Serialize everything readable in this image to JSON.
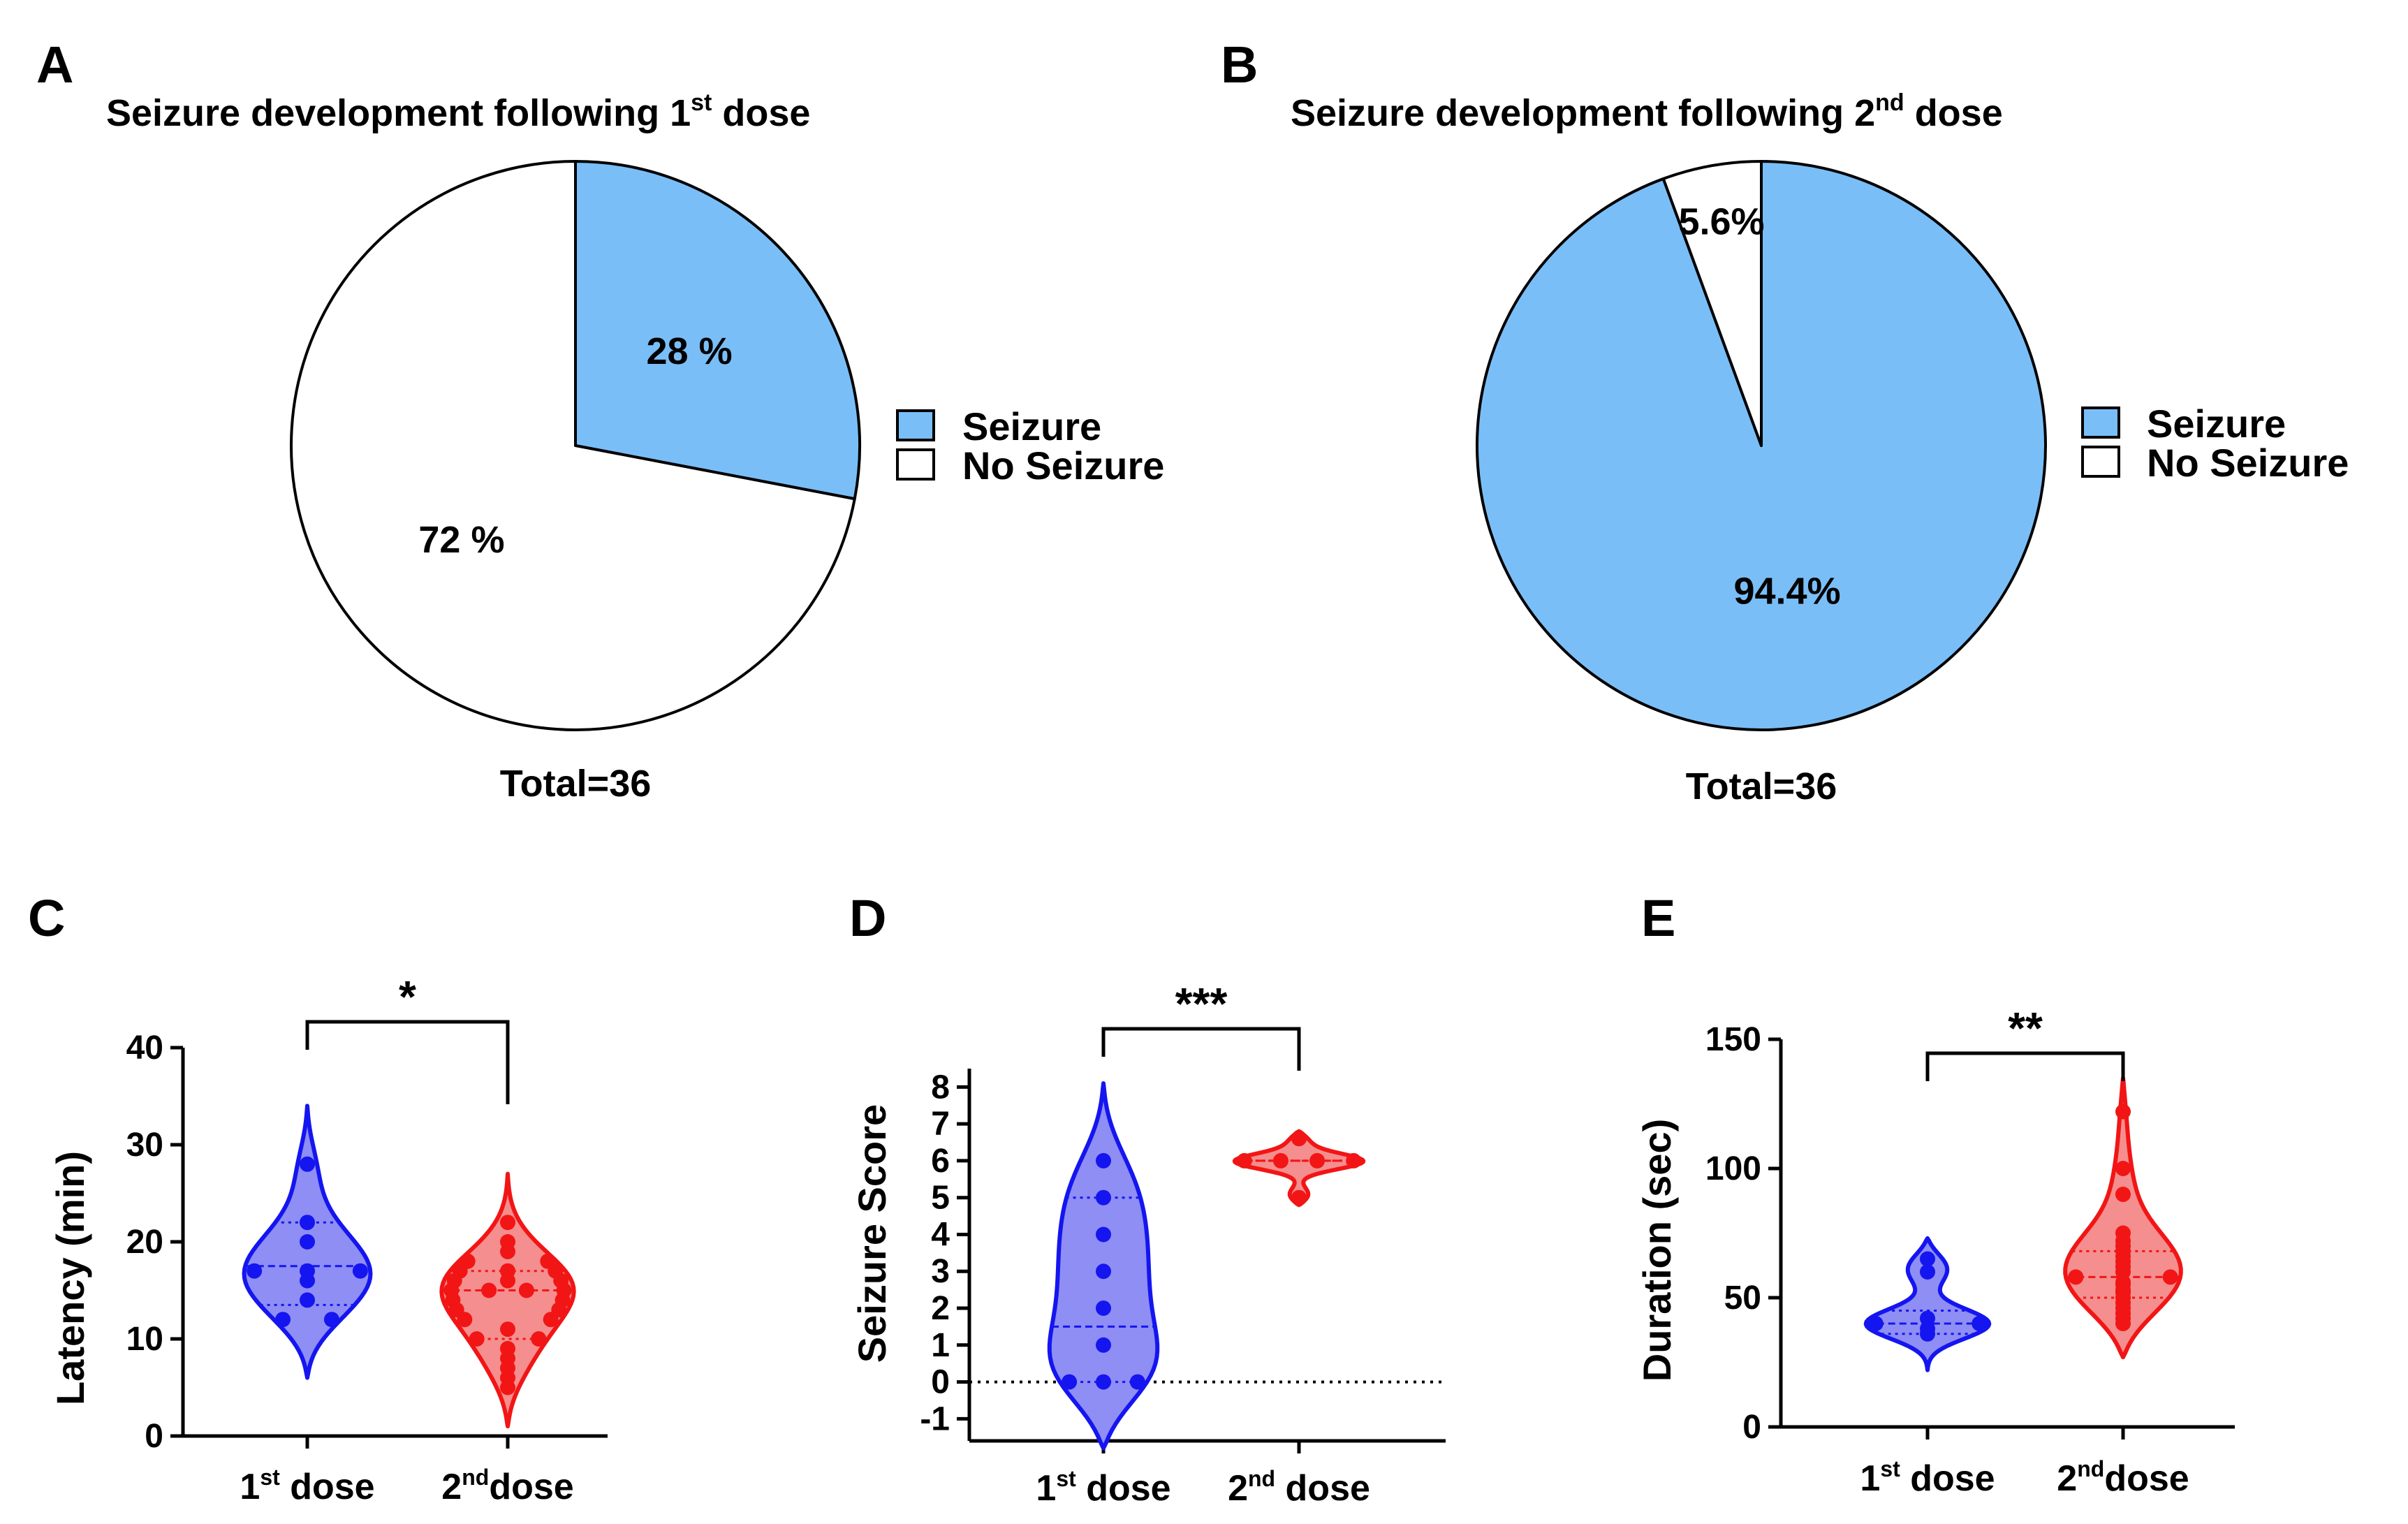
{
  "colors": {
    "seizure_fill": "#7ABEF7",
    "no_seizure_fill": "#FFFFFF",
    "dose1": "#1515F0",
    "dose1_fill": "#8E8EF4",
    "dose2": "#F21515",
    "dose2_fill": "#F58E8E"
  },
  "chart_data": [
    {
      "panel": "A",
      "type": "pie",
      "title": "Seizure development following 1",
      "title_sup": "st",
      "title_end": " dose",
      "slices": [
        {
          "label": "Seizure",
          "value": 28,
          "display": "28 %"
        },
        {
          "label": "No Seizure",
          "value": 72,
          "display": "72 %"
        }
      ],
      "legend": [
        "Seizure",
        "No Seizure"
      ],
      "footer": "Total=36"
    },
    {
      "panel": "B",
      "type": "pie",
      "title": "Seizure development following 2",
      "title_sup": "nd",
      "title_end": " dose",
      "slices": [
        {
          "label": "Seizure",
          "value": 94.4,
          "display": "94.4%"
        },
        {
          "label": "No Seizure",
          "value": 5.6,
          "display": "5.6%"
        }
      ],
      "legend": [
        "Seizure",
        "No Seizure"
      ],
      "footer": "Total=36"
    },
    {
      "panel": "C",
      "type": "violin",
      "ylabel": "Latency (min)",
      "ylim": [
        0,
        40
      ],
      "yticks": [
        "0",
        "10",
        "20",
        "30",
        "40"
      ],
      "categories": [
        {
          "base": "1",
          "sup": "st",
          "rest": " dose"
        },
        {
          "base": "2",
          "sup": "nd",
          "rest": "dose"
        }
      ],
      "significance": "*",
      "series": [
        {
          "name": "1st dose",
          "median": 17.5,
          "q1": 13.5,
          "q3": 22,
          "min_extent": 6,
          "max_extent": 34,
          "points": [
            28,
            22,
            20,
            17,
            17,
            17,
            16,
            14,
            12,
            12
          ]
        },
        {
          "name": "2nd dose",
          "median": 15,
          "q1": 10,
          "q3": 17,
          "min_extent": 1,
          "max_extent": 27,
          "points": [
            22,
            20,
            19,
            18,
            18,
            17,
            17,
            17,
            16,
            16,
            16,
            15,
            15,
            15,
            15,
            14,
            14,
            13,
            13,
            12,
            12,
            11,
            10,
            10,
            9,
            8,
            7,
            6,
            5
          ]
        }
      ]
    },
    {
      "panel": "D",
      "type": "violin",
      "ylabel": "Seizure Score",
      "ylim": [
        -1.6,
        8.5
      ],
      "yticks": [
        "-1",
        "0",
        "1",
        "2",
        "3",
        "4",
        "5",
        "6",
        "7",
        "8"
      ],
      "categories": [
        {
          "base": "1",
          "sup": "st",
          "rest": " dose"
        },
        {
          "base": "2",
          "sup": "nd",
          "rest": " dose"
        }
      ],
      "significance": "***",
      "reference_line": 0,
      "series": [
        {
          "name": "1st dose",
          "median": 1.5,
          "q1": 0,
          "q3": 5,
          "min_extent": -1.8,
          "max_extent": 8.1,
          "points": [
            6,
            5,
            4,
            3,
            2,
            1,
            0,
            0,
            0
          ]
        },
        {
          "name": "2nd dose",
          "median": 6,
          "q1": 6,
          "q3": 6,
          "min_extent": 4.8,
          "max_extent": 6.8,
          "points": [
            6.6,
            6,
            6,
            6,
            6,
            5
          ]
        }
      ]
    },
    {
      "panel": "E",
      "type": "violin",
      "ylabel": "Duration (sec)",
      "ylim": [
        0,
        150
      ],
      "yticks": [
        "0",
        "50",
        "100",
        "150"
      ],
      "categories": [
        {
          "base": "1",
          "sup": "st",
          "rest": " dose"
        },
        {
          "base": "2",
          "sup": "nd",
          "rest": "dose"
        }
      ],
      "significance": "**",
      "series": [
        {
          "name": "1st dose",
          "median": 40,
          "q1": 36,
          "q3": 45,
          "min_extent": 22,
          "max_extent": 73,
          "points": [
            65,
            60,
            42,
            40,
            40,
            38,
            36
          ]
        },
        {
          "name": "2nd dose",
          "median": 58,
          "q1": 50,
          "q3": 68,
          "min_extent": 27,
          "max_extent": 135,
          "points": [
            122,
            100,
            90,
            75,
            72,
            70,
            68,
            66,
            64,
            62,
            60,
            58,
            58,
            56,
            55,
            53,
            52,
            50,
            48,
            46,
            44,
            42,
            40
          ]
        }
      ]
    }
  ]
}
